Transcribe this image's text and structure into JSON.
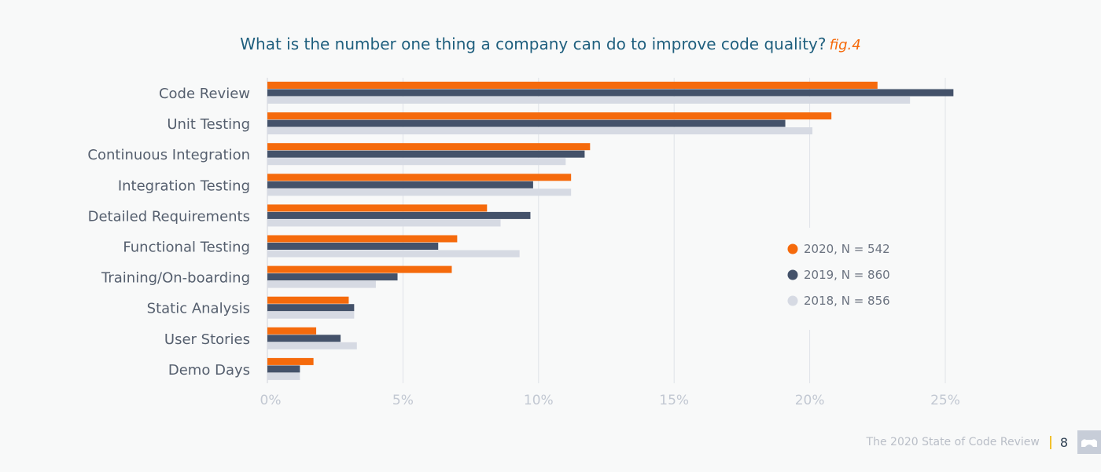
{
  "title": "What is the number one thing a company can do to improve code quality?",
  "fig_label": "fig.4",
  "footer": {
    "source": "The 2020 State of Code Review",
    "page": "8"
  },
  "chart_data": {
    "type": "bar",
    "orientation": "horizontal",
    "title": "What is the number one thing a company can do to improve code quality?",
    "categories": [
      "Code Review",
      "Unit Testing",
      "Continuous Integration",
      "Integration Testing",
      "Detailed Requirements",
      "Functional Testing",
      "Training/On-boarding",
      "Static Analysis",
      "User Stories",
      "Demo Days"
    ],
    "series": [
      {
        "name": "2020, N = 542",
        "color": "#f56a0c",
        "values": [
          22.5,
          20.8,
          11.9,
          11.2,
          8.1,
          7.0,
          6.8,
          3.0,
          1.8,
          1.7
        ]
      },
      {
        "name": "2019, N = 860",
        "color": "#44526a",
        "values": [
          25.3,
          19.1,
          11.7,
          9.8,
          9.7,
          6.3,
          4.8,
          3.2,
          2.7,
          1.2
        ]
      },
      {
        "name": "2018, N = 856",
        "color": "#d6dae3",
        "values": [
          23.7,
          20.1,
          11.0,
          11.2,
          8.6,
          9.3,
          4.0,
          3.2,
          3.3,
          1.2
        ]
      }
    ],
    "xlim": [
      0,
      25
    ],
    "xticks": [
      "0%",
      "5%",
      "10%",
      "15%",
      "20%",
      "25%"
    ],
    "grid": true,
    "legend": "right"
  }
}
